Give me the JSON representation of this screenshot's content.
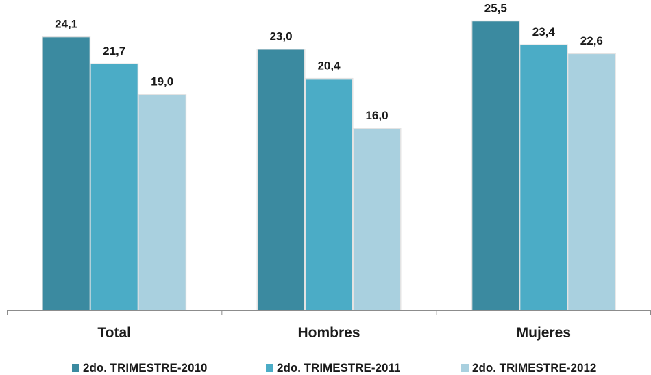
{
  "chart_data": {
    "type": "bar",
    "categories": [
      "Total",
      "Hombres",
      "Mujeres"
    ],
    "series": [
      {
        "name": "2do. TRIMESTRE-2010",
        "values": [
          24.1,
          23.0,
          25.5
        ],
        "labels": [
          "24,1",
          "23,0",
          "25,5"
        ],
        "color": "#3b8aa0"
      },
      {
        "name": "2do. TRIMESTRE-2011",
        "values": [
          21.7,
          20.4,
          23.4
        ],
        "labels": [
          "21,7",
          "20,4",
          "23,4"
        ],
        "color": "#4bacc6"
      },
      {
        "name": "2do. TRIMESTRE-2012",
        "values": [
          19.0,
          16.0,
          22.6
        ],
        "labels": [
          "19,0",
          "16,0",
          "22,6"
        ],
        "color": "#a9d0df"
      }
    ],
    "ylim": [
      0,
      27
    ],
    "grid": false,
    "legend_position": "bottom"
  }
}
